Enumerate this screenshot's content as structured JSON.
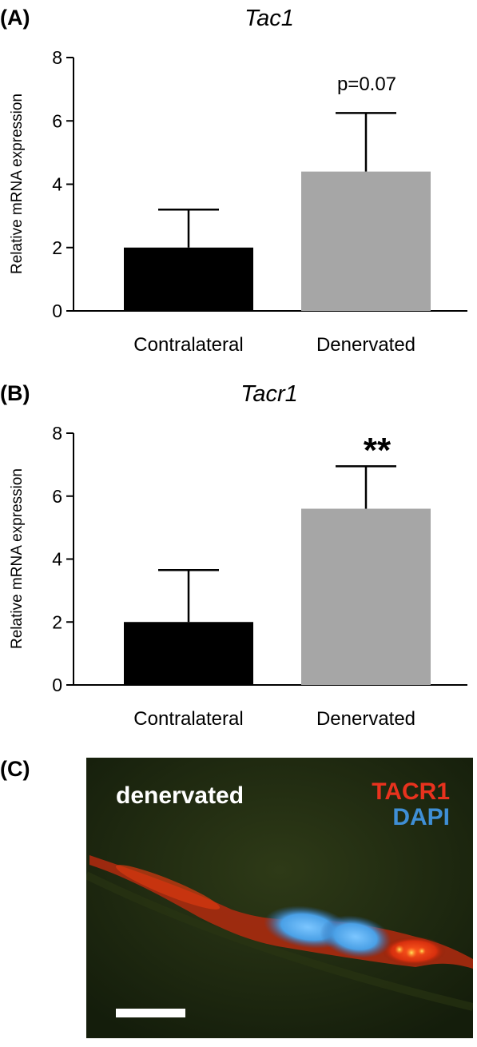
{
  "chart_data": [
    {
      "panel": "(A)",
      "type": "bar",
      "title": "Tac1",
      "ylabel": "Relative mRNA expression",
      "ylim": [
        0,
        8
      ],
      "yticks": [
        "0",
        "2",
        "4",
        "6",
        "8"
      ],
      "categories": [
        "Contralateral",
        "Denervated"
      ],
      "values": [
        2.0,
        4.4
      ],
      "errors": [
        1.2,
        1.85
      ],
      "colors": [
        "#000000",
        "#a6a6a6"
      ],
      "annotation": "p=0.07"
    },
    {
      "panel": "(B)",
      "type": "bar",
      "title": "Tacr1",
      "ylabel": "Relative mRNA expression",
      "ylim": [
        0,
        8
      ],
      "yticks": [
        "0",
        "2",
        "4",
        "6",
        "8"
      ],
      "categories": [
        "Contralateral",
        "Denervated"
      ],
      "values": [
        2.0,
        5.6
      ],
      "errors": [
        1.65,
        1.35
      ],
      "colors": [
        "#000000",
        "#a6a6a6"
      ],
      "annotation": "**"
    }
  ],
  "micrograph": {
    "panel": "(C)",
    "label": "denervated",
    "legend_tacr1": "TACR1",
    "legend_dapi": "DAPI",
    "tacr1_color": "#e8321e",
    "dapi_color": "#3f8fd6"
  }
}
